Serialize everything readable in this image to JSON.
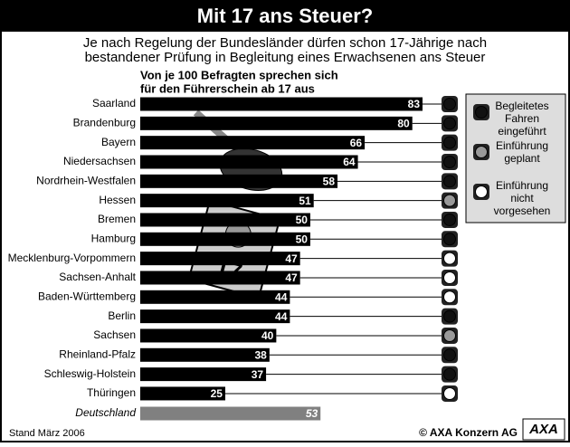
{
  "chart_data": {
    "type": "bar",
    "title": "Mit 17 ans Steuer?",
    "subtitle": [
      "Je nach Regelung der Bundesländer dürfen schon 17-Jährige nach",
      "bestandener Prüfung in Begleitung eines Erwachsenen ans Steuer"
    ],
    "heading": [
      "Von je 100 Befragten sprechen sich",
      "für den Führerschein ab 17 aus"
    ],
    "categories": [
      "Saarland",
      "Brandenburg",
      "Bayern",
      "Niedersachsen",
      "Nordrhein-Westfalen",
      "Hessen",
      "Bremen",
      "Hamburg",
      "Mecklenburg-Vorpommern",
      "Sachsen-Anhalt",
      "Baden-Württemberg",
      "Berlin",
      "Sachsen",
      "Rheinland-Pfalz",
      "Schleswig-Holstein",
      "Thüringen",
      "Deutschland"
    ],
    "values": [
      83,
      80,
      66,
      64,
      58,
      51,
      50,
      50,
      47,
      47,
      44,
      44,
      40,
      38,
      37,
      25,
      53
    ],
    "color": "#000000",
    "total_color": "#808080",
    "status_colors": [
      "#111111",
      "#111111",
      "#111111",
      "#111111",
      "#111111",
      "#999999",
      "#111111",
      "#111111",
      "#ffffff",
      "#ffffff",
      "#ffffff",
      "#111111",
      "#999999",
      "#111111",
      "#111111",
      "#ffffff",
      null
    ],
    "legend": [
      {
        "label": [
          "Begleitetes",
          "Fahren",
          "eingeführt"
        ],
        "color": "#111111"
      },
      {
        "label": [
          "Einführung",
          "geplant"
        ],
        "color": "#999999"
      },
      {
        "label": [
          "Einführung",
          "nicht",
          "vorgesehen"
        ],
        "color": "#ffffff"
      }
    ],
    "illustration_text": "17",
    "source": "Stand März 2006",
    "copyright": "© AXA Konzern AG",
    "logo": "AXA"
  }
}
